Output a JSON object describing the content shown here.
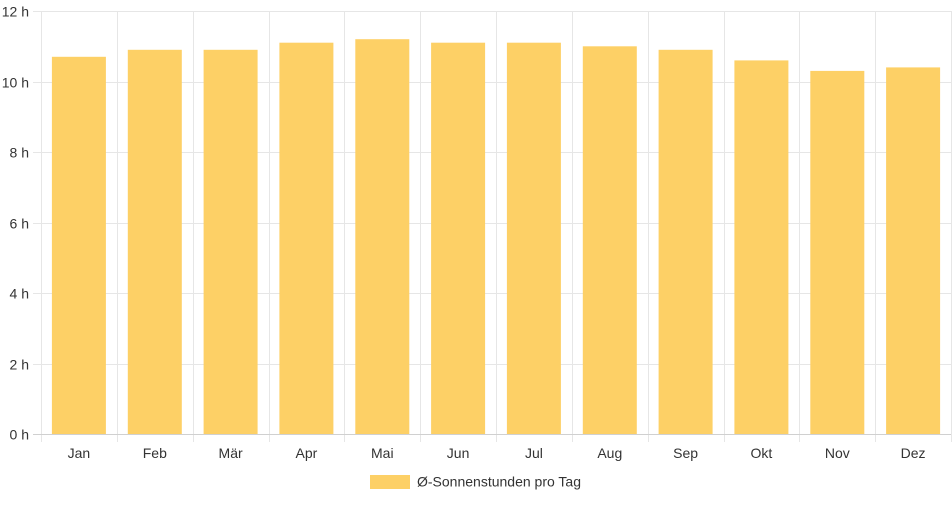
{
  "chart_data": {
    "type": "bar",
    "categories": [
      "Jan",
      "Feb",
      "Mär",
      "Apr",
      "Mai",
      "Jun",
      "Jul",
      "Aug",
      "Sep",
      "Okt",
      "Nov",
      "Dez"
    ],
    "series": [
      {
        "name": "Ø-Sonnenstunden pro Tag",
        "values": [
          10.7,
          10.9,
          10.9,
          11.1,
          11.2,
          11.1,
          11.1,
          11.0,
          10.9,
          10.6,
          10.3,
          10.4
        ]
      }
    ],
    "ylim": [
      0,
      12
    ],
    "yticks": [
      0,
      2,
      4,
      6,
      8,
      10,
      12
    ],
    "ytick_suffix": " h",
    "grid": true,
    "legend_position": "bottom",
    "colors": {
      "bar": "#fdd066"
    }
  }
}
